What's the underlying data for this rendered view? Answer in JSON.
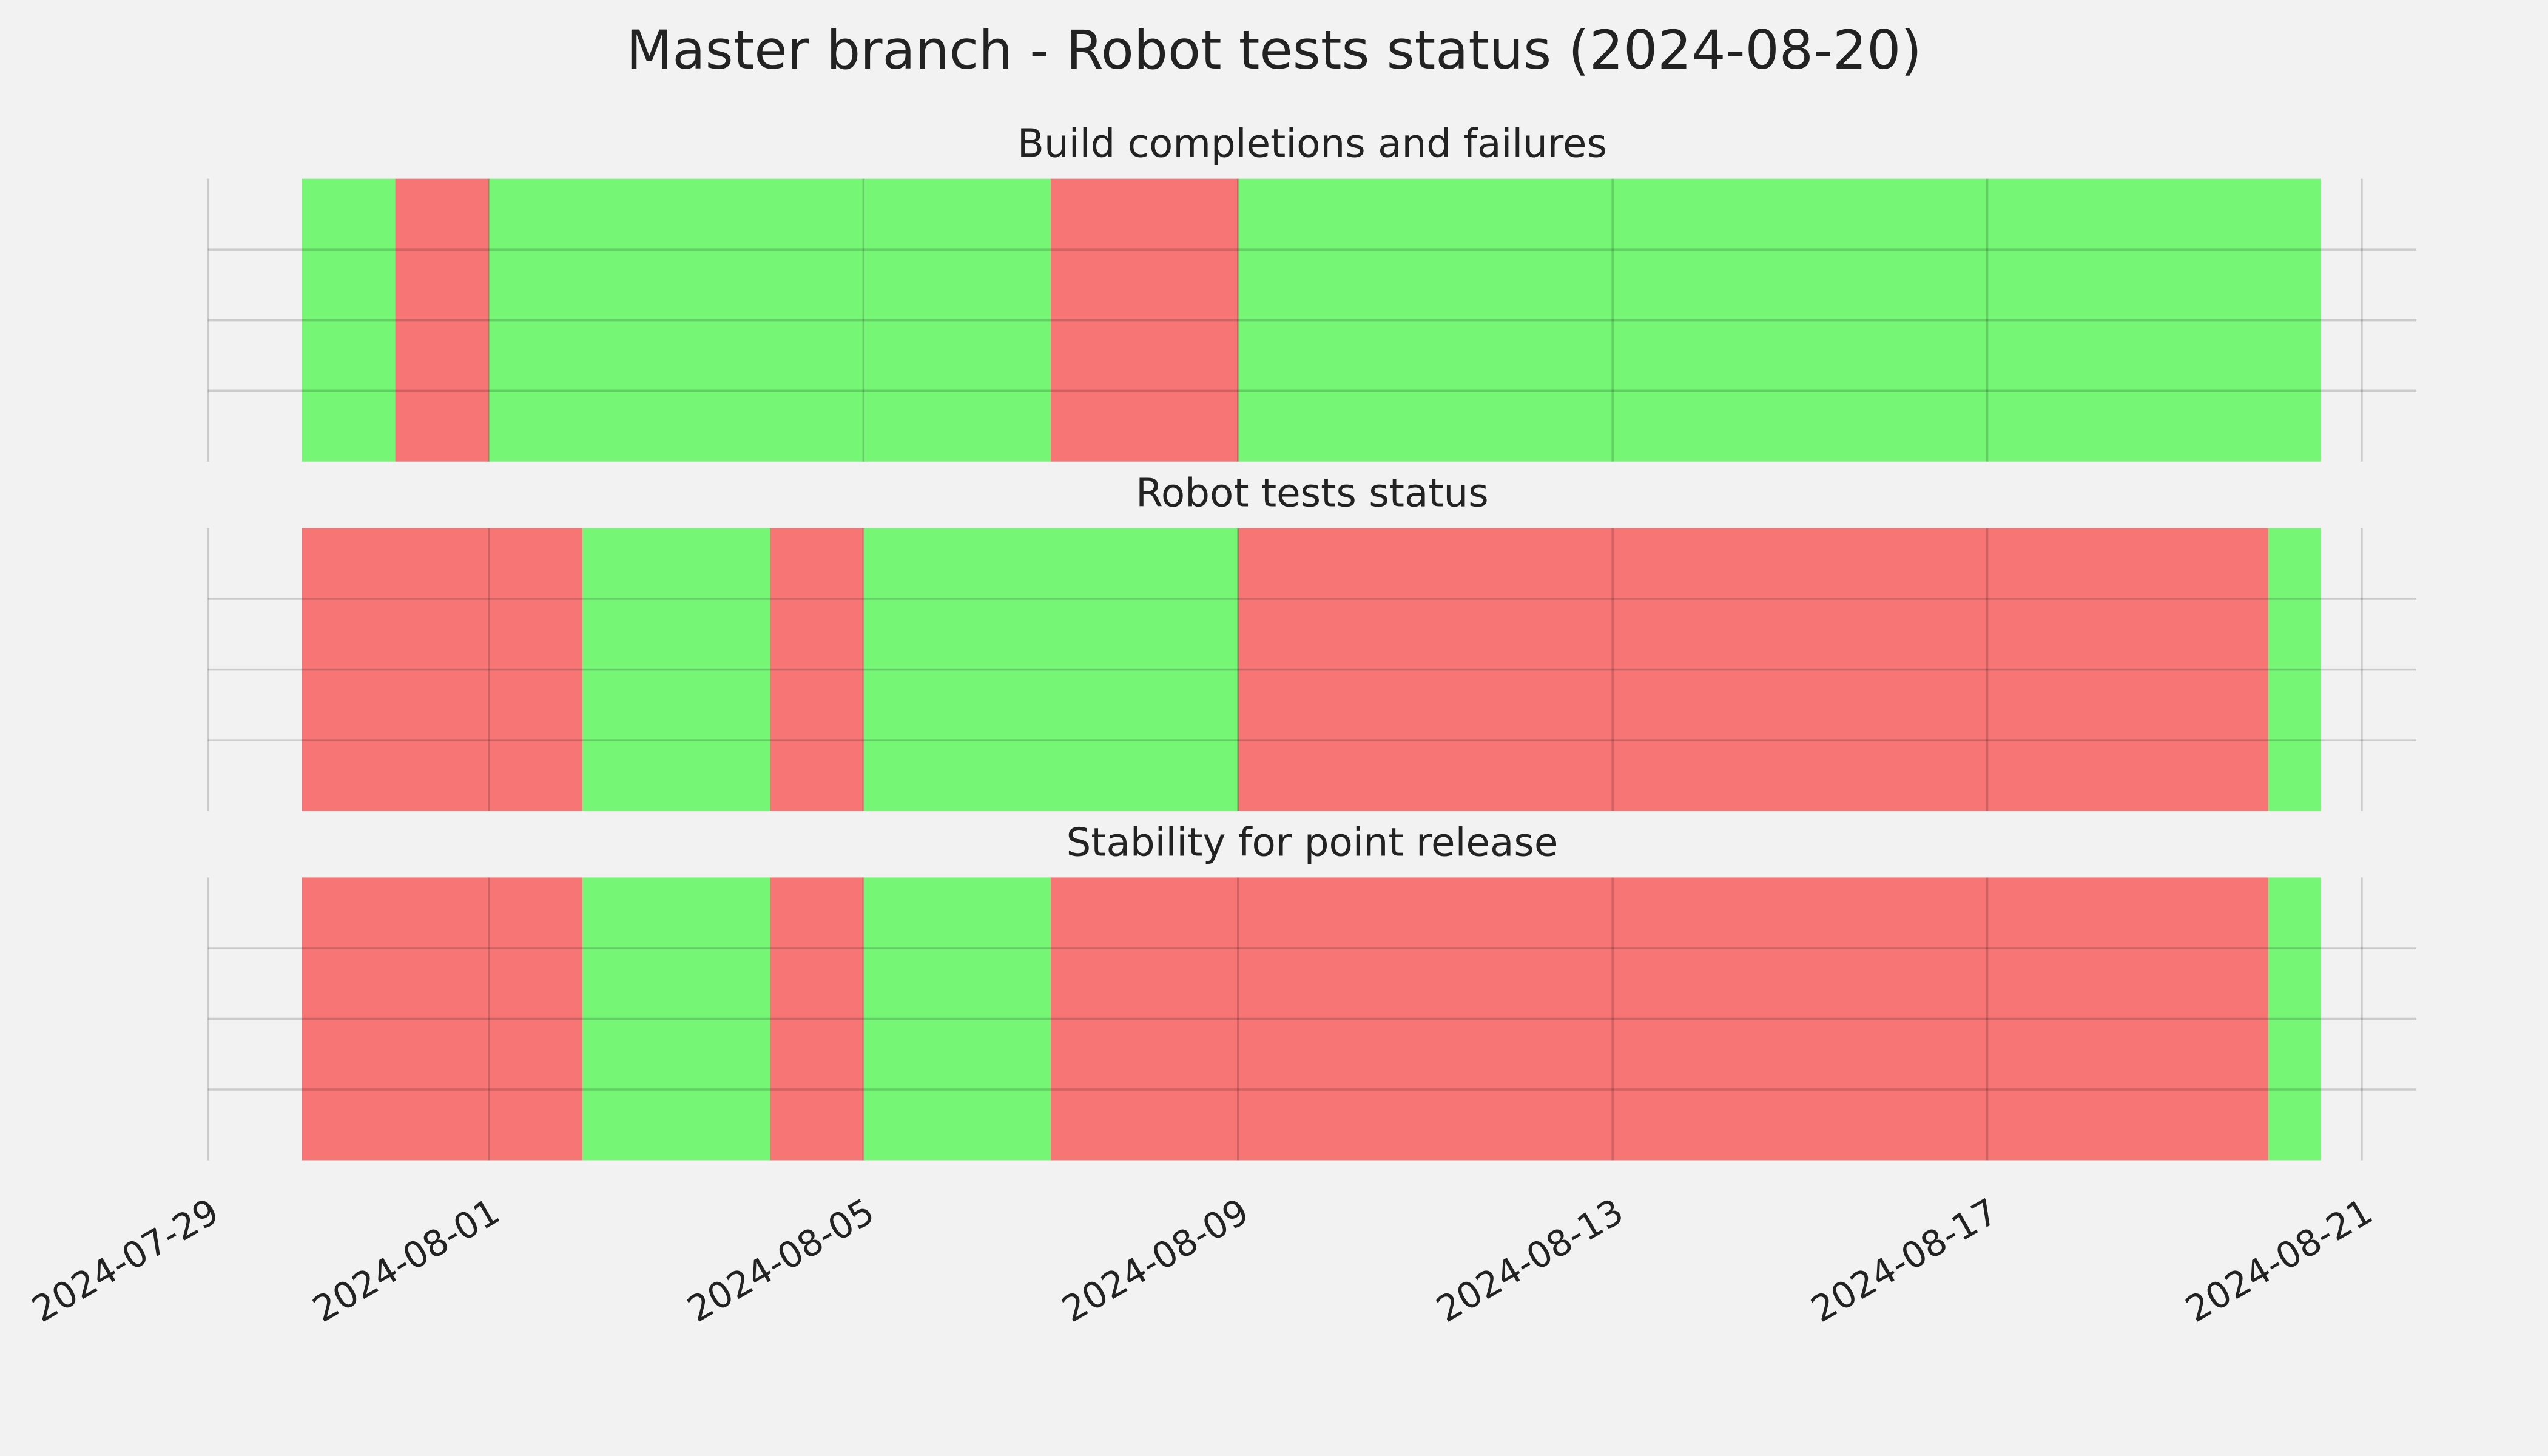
{
  "title": "Master branch - Robot tests status (2024-08-20)",
  "chart_data": [
    {
      "type": "timeline",
      "title": "Build completions and failures",
      "segments": [
        {
          "start": "2024-07-30",
          "end": "2024-07-31",
          "color": "#75f775"
        },
        {
          "start": "2024-07-31",
          "end": "2024-08-01",
          "color": "#f77575"
        },
        {
          "start": "2024-08-01",
          "end": "2024-08-07",
          "color": "#75f775"
        },
        {
          "start": "2024-08-07",
          "end": "2024-08-09",
          "color": "#f77575"
        },
        {
          "start": "2024-08-09",
          "end": "2024-08-20T13:30",
          "color": "#75f775"
        }
      ],
      "xlim": [
        "2024-07-29",
        "2024-08-21T14:00"
      ],
      "xticks": [
        "2024-07-29",
        "2024-08-01",
        "2024-08-05",
        "2024-08-09",
        "2024-08-13",
        "2024-08-17",
        "2024-08-21"
      ],
      "ylim": [
        0,
        1
      ],
      "yticks": [
        0.25,
        0.5,
        0.75
      ],
      "grid": true
    },
    {
      "type": "timeline",
      "title": "Robot tests status",
      "segments": [
        {
          "start": "2024-07-30",
          "end": "2024-08-02",
          "color": "#f77575"
        },
        {
          "start": "2024-08-02",
          "end": "2024-08-04",
          "color": "#75f775"
        },
        {
          "start": "2024-08-04",
          "end": "2024-08-05",
          "color": "#f77575"
        },
        {
          "start": "2024-08-05",
          "end": "2024-08-09",
          "color": "#75f775"
        },
        {
          "start": "2024-08-09",
          "end": "2024-08-20",
          "color": "#f77575"
        },
        {
          "start": "2024-08-20",
          "end": "2024-08-20T13:30",
          "color": "#75f775"
        }
      ],
      "xlim": [
        "2024-07-29",
        "2024-08-21T14:00"
      ],
      "xticks": [
        "2024-07-29",
        "2024-08-01",
        "2024-08-05",
        "2024-08-09",
        "2024-08-13",
        "2024-08-17",
        "2024-08-21"
      ],
      "ylim": [
        0,
        1
      ],
      "yticks": [
        0.25,
        0.5,
        0.75
      ],
      "grid": true
    },
    {
      "type": "timeline",
      "title": "Stability for point release",
      "segments": [
        {
          "start": "2024-07-30",
          "end": "2024-08-02",
          "color": "#f77575"
        },
        {
          "start": "2024-08-02",
          "end": "2024-08-04",
          "color": "#75f775"
        },
        {
          "start": "2024-08-04",
          "end": "2024-08-05",
          "color": "#f77575"
        },
        {
          "start": "2024-08-05",
          "end": "2024-08-07",
          "color": "#75f775"
        },
        {
          "start": "2024-08-07",
          "end": "2024-08-20",
          "color": "#f77575"
        },
        {
          "start": "2024-08-20",
          "end": "2024-08-20T13:30",
          "color": "#75f775"
        }
      ],
      "xlim": [
        "2024-07-29",
        "2024-08-21T14:00"
      ],
      "xticks": [
        "2024-07-29",
        "2024-08-01",
        "2024-08-05",
        "2024-08-09",
        "2024-08-13",
        "2024-08-17",
        "2024-08-21"
      ],
      "ylim": [
        0,
        1
      ],
      "yticks": [
        0.25,
        0.5,
        0.75
      ],
      "grid": true,
      "show_xtick_labels": true
    }
  ]
}
